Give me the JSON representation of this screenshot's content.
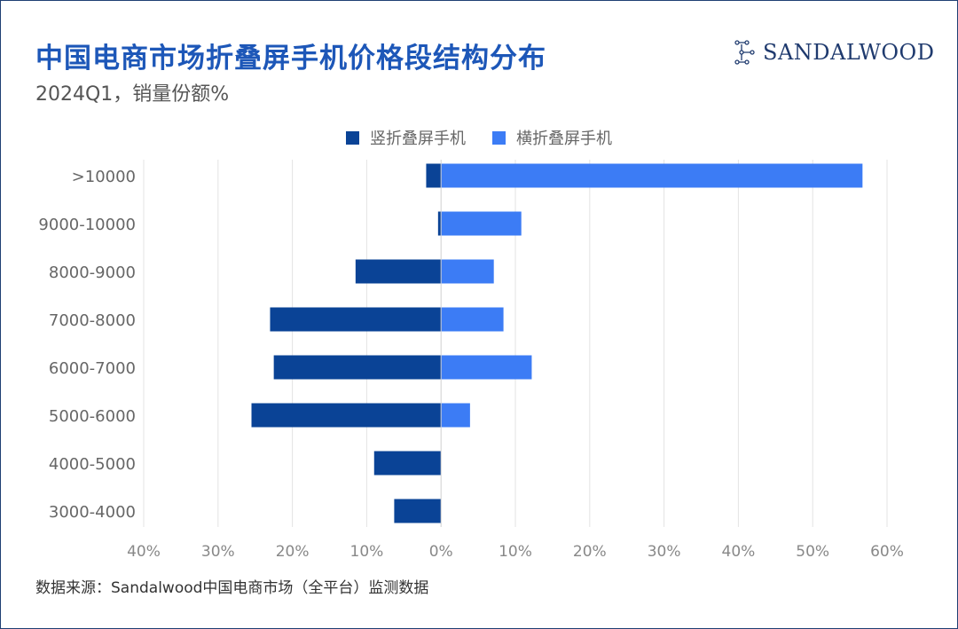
{
  "header": {
    "title": "中国电商市场折叠屏手机价格段结构分布",
    "subtitle": "2024Q1，销量份额%"
  },
  "logo": {
    "text": "SANDALWOOD",
    "icon": "sandalwood-logo-icon"
  },
  "footer": {
    "source": "数据来源：Sandalwood中国电商市场（全平台）监测数据"
  },
  "colors": {
    "series_vertical": "#0a4396",
    "series_horizontal": "#3c7cf5",
    "title": "#1d57b8",
    "grid": "#e3e3e3"
  },
  "chart_data": {
    "type": "bar",
    "orientation": "horizontal",
    "stacking": "diverging",
    "title": "中国电商市场折叠屏手机价格段结构分布",
    "subtitle": "2024Q1，销量份额%",
    "categories": [
      ">10000",
      "9000-10000",
      "8000-9000",
      "7000-8000",
      "6000-7000",
      "5000-6000",
      "4000-5000",
      "3000-4000"
    ],
    "series": [
      {
        "name": "竖折叠屏手机",
        "direction": "left",
        "values": [
          2,
          0.4,
          11.5,
          23,
          22.5,
          25.5,
          9,
          6.3
        ]
      },
      {
        "name": "横折叠屏手机",
        "direction": "right",
        "values": [
          56.7,
          10.8,
          7.1,
          8.4,
          12.2,
          3.9,
          0,
          0
        ]
      }
    ],
    "xlim": [
      -40,
      60
    ],
    "xticks": [
      -40,
      -30,
      -20,
      -10,
      0,
      10,
      20,
      30,
      40,
      50,
      60
    ],
    "xtick_labels": [
      "40%",
      "30%",
      "20%",
      "10%",
      "0%",
      "10%",
      "20%",
      "30%",
      "40%",
      "50%",
      "60%"
    ],
    "grid": true,
    "legend": "top-center"
  }
}
